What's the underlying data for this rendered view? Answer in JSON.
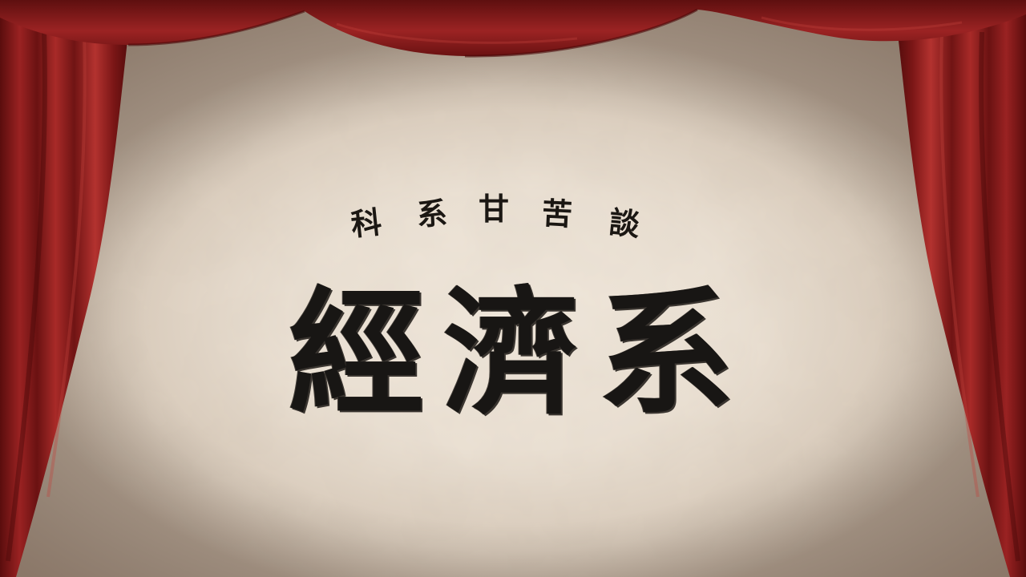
{
  "subtitle": {
    "chars": [
      "科",
      "系",
      "甘",
      "苦",
      "談"
    ]
  },
  "title": {
    "chars": [
      "經",
      "濟",
      "系"
    ]
  },
  "colors": {
    "curtain": "#8f1d1d",
    "curtain_dark": "#5a0d0d",
    "curtain_light": "#b3322f",
    "parchment": "#efe6da",
    "ink": "#1b1713"
  }
}
